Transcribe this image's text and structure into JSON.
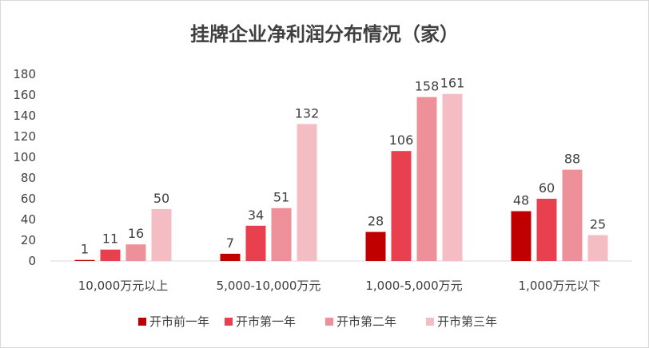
{
  "chart_data": {
    "type": "bar",
    "title": "挂牌企业净利润分布情况（家）",
    "xlabel": "",
    "ylabel": "",
    "categories": [
      "10,000万元以上",
      "5,000-10,000万元",
      "1,000-5,000万元",
      "1,000万元以下"
    ],
    "series": [
      {
        "name": "开市前一年",
        "color": "#c00000",
        "values": [
          1,
          7,
          28,
          48
        ]
      },
      {
        "name": "开市第一年",
        "color": "#e8404f",
        "values": [
          11,
          34,
          106,
          60
        ]
      },
      {
        "name": "开市第二年",
        "color": "#ee9099",
        "values": [
          16,
          51,
          158,
          88
        ]
      },
      {
        "name": "开市第三年",
        "color": "#f4bcc3",
        "values": [
          50,
          132,
          161,
          25
        ]
      }
    ],
    "ylim": [
      0,
      180
    ],
    "yticks": [
      0,
      20,
      40,
      60,
      80,
      100,
      120,
      140,
      160,
      180
    ],
    "grid": false,
    "legend": "bottom"
  }
}
